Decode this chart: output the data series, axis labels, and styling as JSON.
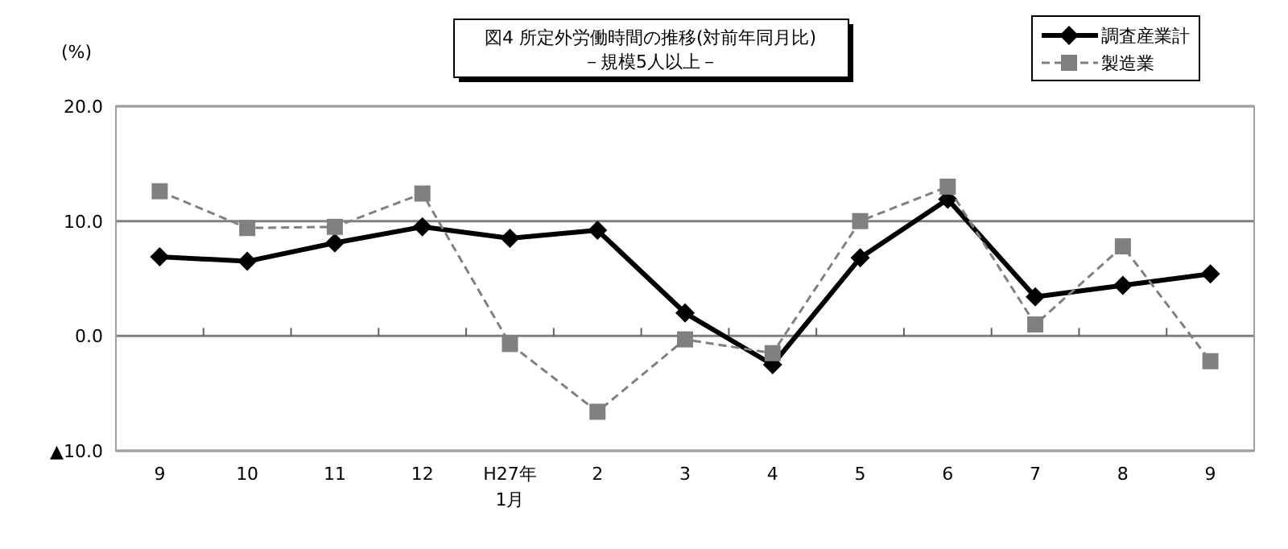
{
  "chart_data": {
    "type": "line",
    "title": "図4  所定外労働時間の推移(対前年同月比)",
    "subtitle": "－規模5人以上－",
    "ylabel": "(%)",
    "categories": [
      "9",
      "10",
      "11",
      "12",
      "H27年\n1月",
      "2",
      "3",
      "4",
      "5",
      "6",
      "7",
      "8",
      "9"
    ],
    "series": [
      {
        "name": "調査産業計",
        "color": "#000000",
        "marker": "diamond",
        "line_style": "solid",
        "values": [
          6.9,
          6.5,
          8.1,
          9.5,
          8.5,
          9.2,
          2.0,
          -2.5,
          6.8,
          11.9,
          3.4,
          4.4,
          5.4
        ]
      },
      {
        "name": "製造業",
        "color": "#808080",
        "marker": "square",
        "line_style": "dashed",
        "values": [
          12.6,
          9.4,
          9.5,
          12.4,
          -0.7,
          -6.6,
          -0.3,
          -1.5,
          10.0,
          13.0,
          1.0,
          7.8,
          -2.2
        ]
      }
    ],
    "ylim": [
      -10,
      20
    ],
    "yticks": [
      {
        "value": -10,
        "label": "▲10.0"
      },
      {
        "value": 0,
        "label": "0.0"
      },
      {
        "value": 10,
        "label": "10.0"
      },
      {
        "value": 20,
        "label": "20.0"
      }
    ],
    "grid": "y",
    "legend": "top right"
  }
}
